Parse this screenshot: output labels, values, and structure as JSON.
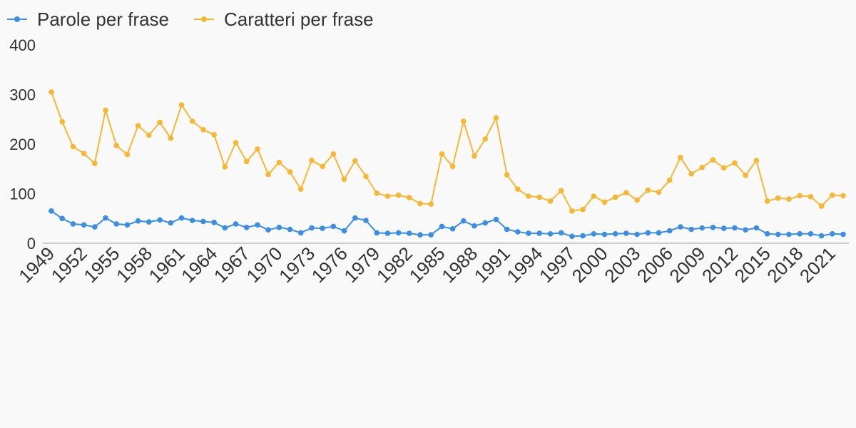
{
  "chart_data": {
    "type": "line",
    "title": "",
    "xlabel": "",
    "ylabel": "",
    "ylim": [
      0,
      400
    ],
    "yticks": [
      0,
      100,
      200,
      300,
      400
    ],
    "grid": false,
    "legend_position": "top-left",
    "x": [
      1949,
      1950,
      1951,
      1952,
      1953,
      1954,
      1955,
      1956,
      1957,
      1958,
      1959,
      1960,
      1961,
      1962,
      1963,
      1964,
      1965,
      1966,
      1967,
      1968,
      1969,
      1970,
      1971,
      1972,
      1973,
      1974,
      1975,
      1976,
      1977,
      1978,
      1979,
      1980,
      1981,
      1982,
      1983,
      1984,
      1985,
      1986,
      1987,
      1988,
      1989,
      1990,
      1991,
      1992,
      1993,
      1994,
      1995,
      1996,
      1997,
      1998,
      1999,
      2000,
      2001,
      2002,
      2003,
      2004,
      2005,
      2006,
      2007,
      2008,
      2009,
      2010,
      2011,
      2012,
      2013,
      2014,
      2015,
      2016,
      2017,
      2018,
      2019,
      2020,
      2021,
      2022
    ],
    "xtick_labels": [
      "1949",
      "1952",
      "1955",
      "1958",
      "1961",
      "1964",
      "1967",
      "1970",
      "1973",
      "1976",
      "1979",
      "1982",
      "1985",
      "1988",
      "1991",
      "1994",
      "1997",
      "2000",
      "2003",
      "2006",
      "2009",
      "2012",
      "2015",
      "2018",
      "2021"
    ],
    "series": [
      {
        "name": "Parole per frase",
        "color": "#3a8ee6",
        "values": [
          65,
          50,
          39,
          37,
          33,
          51,
          39,
          37,
          45,
          43,
          47,
          41,
          51,
          46,
          44,
          42,
          31,
          39,
          32,
          37,
          27,
          32,
          28,
          21,
          31,
          30,
          34,
          25,
          51,
          46,
          21,
          20,
          21,
          20,
          17,
          17,
          34,
          29,
          45,
          35,
          41,
          48,
          28,
          23,
          20,
          20,
          19,
          21,
          14,
          15,
          19,
          18,
          19,
          20,
          18,
          21,
          21,
          25,
          33,
          28,
          31,
          32,
          30,
          31,
          27,
          31,
          19,
          18,
          18,
          19,
          19,
          15,
          19,
          18
        ],
        "series_note": "values per year"
      },
      {
        "name": "Caratteri per frase",
        "color": "#f7b733",
        "values": [
          305,
          245,
          195,
          181,
          161,
          268,
          197,
          179,
          237,
          218,
          244,
          212,
          279,
          246,
          229,
          219,
          154,
          203,
          165,
          190,
          139,
          163,
          144,
          109,
          167,
          155,
          180,
          129,
          166,
          135,
          101,
          95,
          97,
          92,
          80,
          79,
          180,
          155,
          246,
          176,
          210,
          253,
          138,
          109,
          95,
          93,
          85,
          106,
          65,
          68,
          95,
          83,
          93,
          102,
          87,
          107,
          103,
          127,
          173,
          140,
          153,
          168,
          152,
          162,
          137,
          167,
          85,
          91,
          89,
          96,
          94,
          75,
          97,
          96
        ]
      }
    ]
  }
}
